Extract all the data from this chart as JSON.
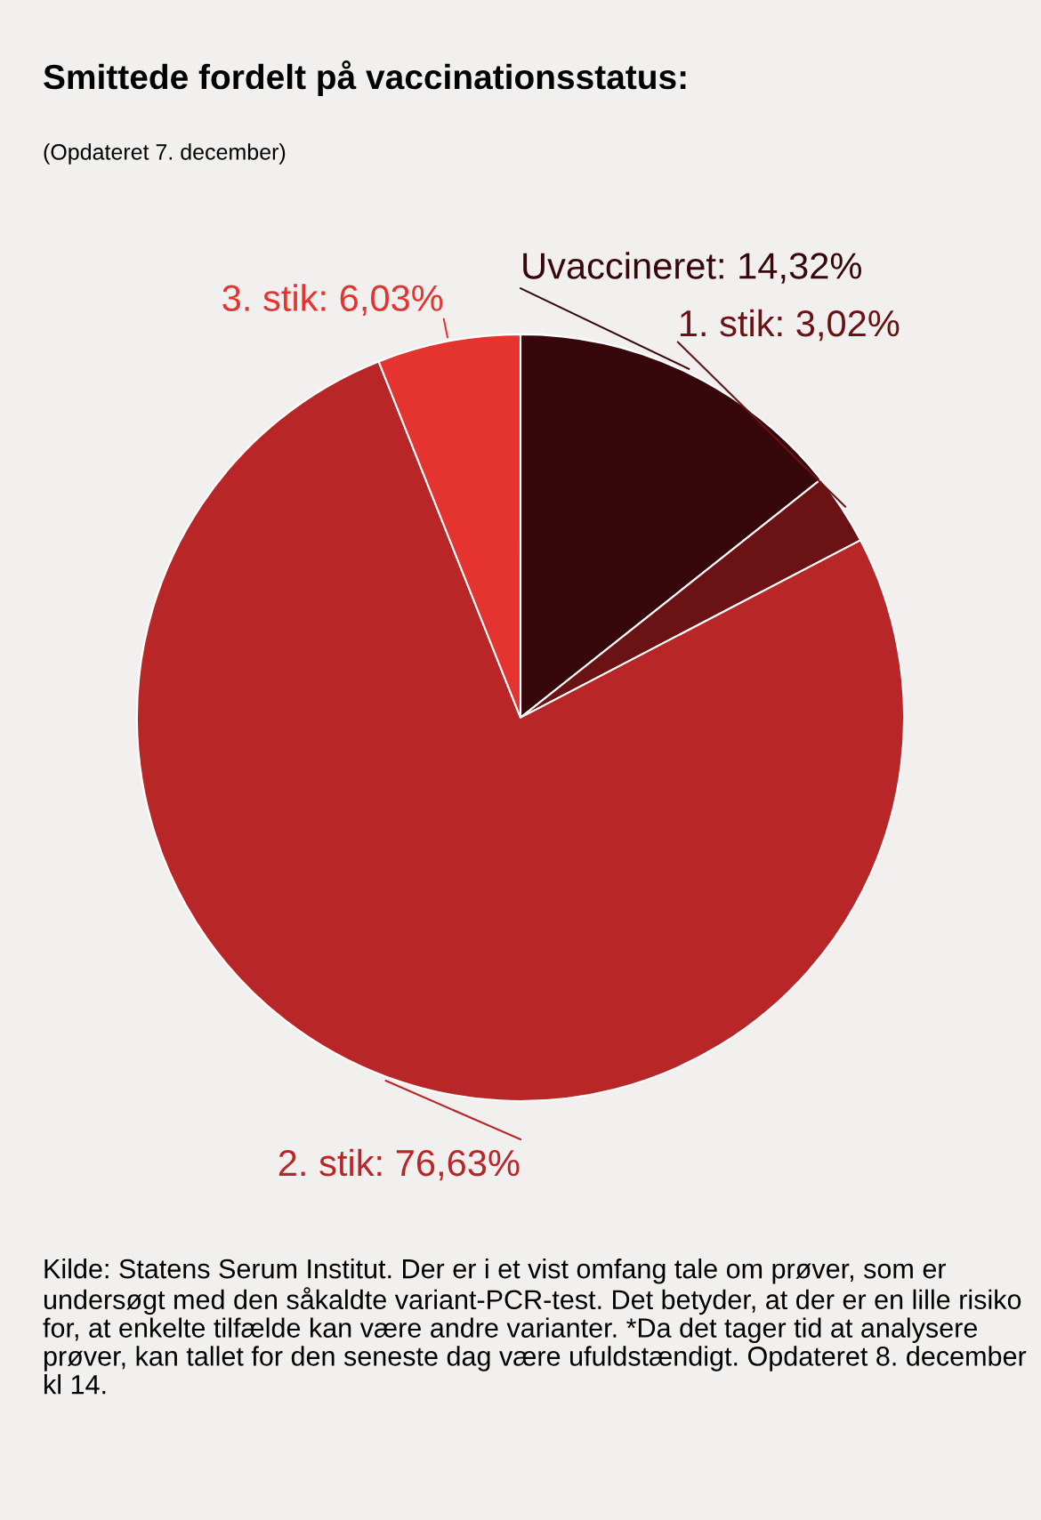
{
  "chart_data": {
    "type": "pie",
    "title": "Smittede fordelt på vaccinationsstatus:",
    "subtitle": "(Opdateret 7. december)",
    "categories": [
      "Uvaccineret",
      "1. stik",
      "2. stik",
      "3. stik"
    ],
    "values": [
      14.32,
      3.02,
      76.63,
      6.03
    ],
    "value_labels": [
      "14,32%",
      "3,02%",
      "76,63%",
      "6,03%"
    ],
    "colors": [
      "#36070b",
      "#6b1215",
      "#b92628",
      "#e53430"
    ],
    "annotations": [
      "Kilde: Statens Serum Institut. Der er i et vist omfang tale om prøver, som er undersøgt med den såkaldte variant-PCR-test. Det betyder, at der er en lille risiko for, at enkelte tilfælde kan være andre varianter. *Da det tager tid at analysere prøver, kan tallet for den seneste dag være ufuldstændigt. Opdateret 8. december kl 14."
    ]
  }
}
